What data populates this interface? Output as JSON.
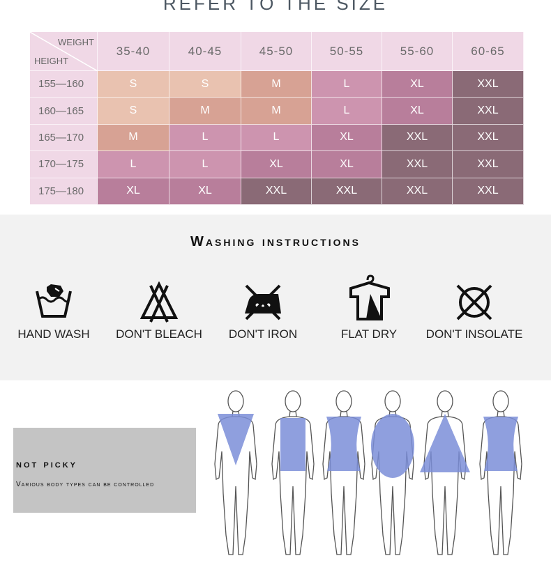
{
  "title": "REFER TO THE SIZE",
  "size_table": {
    "corner_weight": "WEIGHT",
    "corner_height": "HEIGHT",
    "weights": [
      "35-40",
      "40-45",
      "45-50",
      "50-55",
      "55-60",
      "60-65"
    ],
    "rows": [
      {
        "height": "155—160",
        "sizes": [
          "S",
          "S",
          "M",
          "L",
          "XL",
          "XXL"
        ]
      },
      {
        "height": "160—165",
        "sizes": [
          "S",
          "M",
          "M",
          "L",
          "XL",
          "XXL"
        ]
      },
      {
        "height": "165—170",
        "sizes": [
          "M",
          "L",
          "L",
          "XL",
          "XXL",
          "XXL"
        ]
      },
      {
        "height": "170—175",
        "sizes": [
          "L",
          "L",
          "XL",
          "XL",
          "XXL",
          "XXL"
        ]
      },
      {
        "height": "175—180",
        "sizes": [
          "XL",
          "XL",
          "XXL",
          "XXL",
          "XXL",
          "XXL"
        ]
      }
    ],
    "colors": {
      "S": "#e9c2b0",
      "M": "#d7a294",
      "L": "#cd94af",
      "XL": "#b87e9b",
      "XXL": "#8a6a76",
      "header": "#f0d8e6"
    }
  },
  "washing": {
    "title": "Washing instructions",
    "items": [
      {
        "icon": "hand-wash-icon",
        "label": "HAND WASH"
      },
      {
        "icon": "no-bleach-icon",
        "label": "DON'T BLEACH"
      },
      {
        "icon": "no-iron-icon",
        "label": "DON'T IRON"
      },
      {
        "icon": "flat-dry-icon",
        "label": "FLAT DRY"
      },
      {
        "icon": "no-tumble-dry-icon",
        "label": "DON'T INSOLATE"
      }
    ]
  },
  "body_types": {
    "title": "not picky",
    "subtitle": "Various body types can be controlled",
    "figure_color": "#7b8ed8"
  }
}
